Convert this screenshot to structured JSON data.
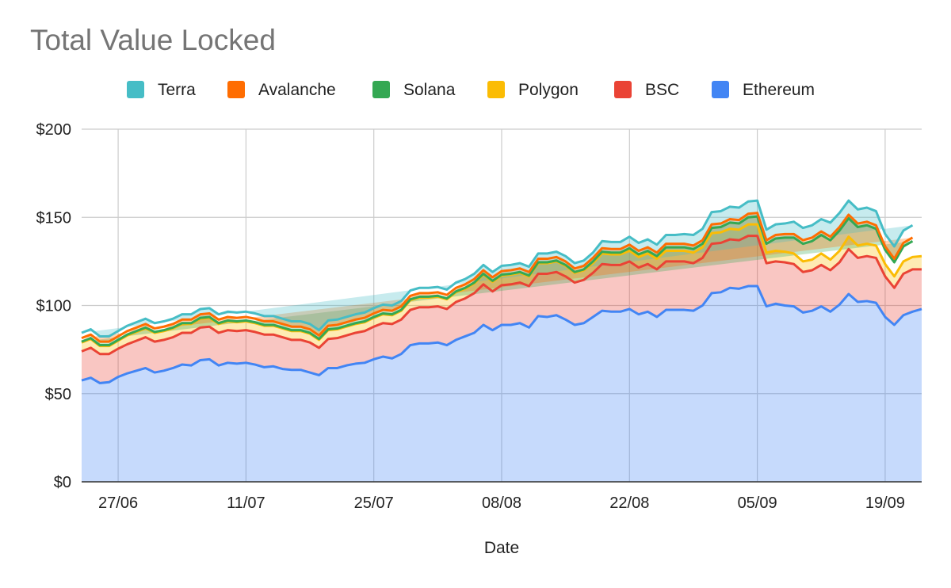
{
  "chart_data": {
    "type": "area",
    "stacked": true,
    "title": "Total Value Locked",
    "xlabel": "Date",
    "ylabel": "",
    "ylim": [
      0,
      200
    ],
    "y_ticks": [
      "$0",
      "$50",
      "$100",
      "$150",
      "$200"
    ],
    "y_tick_values": [
      0,
      50,
      100,
      150,
      200
    ],
    "x_tick_labels": [
      "27/06",
      "11/07",
      "25/07",
      "08/08",
      "22/08",
      "05/09",
      "19/09"
    ],
    "x_tick_indices": [
      4,
      18,
      32,
      46,
      60,
      74,
      88
    ],
    "grid": true,
    "legend_position": "top",
    "legend_order": [
      "Terra",
      "Avalanche",
      "Solana",
      "Polygon",
      "BSC",
      "Ethereum"
    ],
    "x_count": 93,
    "series": [
      {
        "name": "Ethereum",
        "color": "#4285f4",
        "values": [
          57.5,
          59,
          56,
          56.5,
          59.5,
          61.5,
          63,
          64.5,
          62,
          63,
          64.5,
          66.5,
          66,
          69,
          69.5,
          66,
          67.5,
          67,
          67.5,
          66.5,
          65,
          65.5,
          64,
          63.5,
          63.5,
          62,
          60.5,
          64.5,
          64.5,
          66,
          67,
          67.5,
          69.5,
          71,
          70,
          72.5,
          77.5,
          78.5,
          78.5,
          79,
          77.5,
          80.5,
          82.5,
          84.5,
          89,
          86,
          89,
          89,
          90,
          87.5,
          94,
          93.5,
          94.5,
          92,
          89,
          90,
          93.5,
          97,
          96.5,
          96.5,
          98,
          95,
          96.5,
          93.5,
          97.5,
          97.5,
          97.5,
          97,
          100,
          107,
          107.5,
          110,
          109.5,
          111,
          111,
          99.5,
          101,
          100,
          99.5,
          96,
          97,
          99.5,
          96.5,
          100.5,
          106.5,
          102,
          102.5,
          101.5,
          93.5,
          89,
          94.5,
          96.5,
          98
        ]
      },
      {
        "name": "BSC",
        "color": "#ea4335",
        "values": [
          16.5,
          17,
          16.5,
          16,
          16,
          16.5,
          17,
          17.5,
          17.5,
          17.5,
          17.5,
          18,
          18.5,
          18.5,
          18.5,
          18.5,
          18.5,
          18.5,
          18.5,
          18.5,
          18.5,
          18,
          18,
          17,
          17,
          17,
          15.5,
          16.5,
          17,
          17,
          17.5,
          18,
          18.5,
          19,
          19.5,
          19.5,
          20,
          20.5,
          20.5,
          20.5,
          20.5,
          21.5,
          21.5,
          22.5,
          23,
          22,
          22.5,
          23,
          23,
          23.5,
          24,
          24.5,
          24.5,
          24.5,
          24,
          24.5,
          25,
          26.5,
          26.5,
          26.5,
          27,
          26.5,
          27,
          27,
          27.5,
          27.5,
          27.5,
          27,
          27,
          28,
          28,
          27.5,
          27.5,
          28.5,
          28.5,
          24.5,
          24,
          24.5,
          24,
          23,
          23,
          23.5,
          23.5,
          24,
          25.5,
          25,
          25.5,
          25.5,
          23,
          21,
          23.5,
          24,
          22.5
        ]
      },
      {
        "name": "Polygon",
        "color": "#fbbc04",
        "values": [
          5,
          5,
          4.5,
          4.5,
          4.5,
          5,
          5,
          5,
          5,
          5,
          5,
          5,
          5,
          5,
          5,
          5,
          5,
          5,
          5,
          5,
          5,
          5,
          5,
          5,
          5,
          5,
          4.5,
          5,
          5,
          5,
          5,
          5,
          5,
          5,
          5,
          5,
          5.5,
          5.5,
          5.5,
          5.5,
          5.5,
          5.5,
          5.5,
          5.5,
          5.5,
          5.5,
          5.5,
          5.5,
          5.5,
          5.5,
          6,
          6,
          6,
          6,
          5.5,
          5.5,
          5.5,
          6,
          6,
          6,
          6,
          6,
          6,
          6,
          6,
          6,
          6,
          6,
          6,
          6,
          6,
          6,
          6,
          6.5,
          6.5,
          6,
          6,
          6,
          6,
          6,
          6,
          6.5,
          6,
          6.5,
          7,
          7,
          7,
          7,
          7,
          6.5,
          7,
          7,
          7.5
        ]
      },
      {
        "name": "Solana",
        "color": "#34a853",
        "values": [
          0.5,
          0.5,
          0.5,
          0.5,
          0.5,
          0.5,
          0.5,
          0.5,
          0.5,
          0.5,
          0.5,
          0.5,
          0.5,
          0.5,
          0.5,
          0.5,
          0.5,
          0.5,
          0.5,
          0.5,
          0.5,
          0.5,
          0.5,
          0.5,
          0.5,
          0.5,
          0.5,
          0.5,
          0.5,
          0.5,
          0.5,
          0.5,
          0.5,
          0.5,
          0.5,
          0.5,
          0.5,
          0.5,
          0.5,
          0.5,
          0.5,
          0.5,
          0.5,
          0.5,
          0.5,
          0.5,
          0.5,
          0.5,
          0.5,
          0.5,
          0.5,
          0.5,
          0.5,
          0.5,
          0.5,
          0.5,
          1,
          1,
          1,
          1,
          1.5,
          1.5,
          1.5,
          1.5,
          2,
          2,
          2,
          2,
          2,
          3,
          3,
          3.5,
          3.5,
          4,
          4.5,
          5,
          7,
          8,
          9,
          10,
          10.5,
          10.5,
          11,
          11.5,
          10.5,
          10.5,
          10.5,
          9.5,
          8,
          8,
          8.5,
          9
        ]
      },
      {
        "name": "Avalanche",
        "color": "#ff6d01",
        "values": [
          2,
          2,
          2,
          2,
          2,
          2,
          2,
          2,
          2,
          2,
          2,
          2,
          2,
          2,
          2,
          2,
          2,
          2,
          2,
          2,
          2,
          2,
          2,
          2,
          2,
          2,
          2,
          2,
          2,
          2,
          2,
          2,
          2,
          2,
          2,
          2,
          2,
          2,
          2,
          2,
          2,
          2,
          2,
          2,
          2,
          2,
          2,
          2,
          2,
          2,
          2,
          2,
          2,
          2,
          2,
          2,
          2,
          2,
          2,
          2,
          2,
          2,
          2,
          2,
          2,
          2,
          2,
          2,
          2,
          2,
          2,
          2,
          2,
          2,
          2,
          2,
          2,
          2,
          2,
          2,
          2,
          2,
          2,
          2,
          2,
          2,
          2,
          2,
          2,
          2,
          2,
          2,
          2
        ]
      },
      {
        "name": "Terra",
        "color": "#46bdc6",
        "values": [
          3,
          3,
          3,
          3,
          3,
          3,
          3,
          3,
          3,
          3,
          3,
          3,
          3,
          3,
          3,
          3,
          3,
          3,
          3,
          3,
          3,
          3,
          3,
          3,
          3,
          3,
          3,
          3,
          3,
          3,
          3,
          3,
          3,
          3,
          3,
          3,
          3,
          3,
          3,
          3,
          3,
          3,
          3,
          3,
          3,
          3,
          3,
          3,
          3,
          3,
          3,
          3,
          3,
          3,
          3,
          3,
          3,
          4,
          4,
          4,
          4.5,
          4.5,
          4.5,
          4.5,
          5,
          5,
          5.5,
          6,
          6.5,
          7,
          7,
          7,
          7,
          7,
          7,
          6,
          6,
          6,
          7,
          7,
          7,
          7,
          8,
          8,
          8,
          8,
          8,
          8,
          7,
          7,
          7,
          7,
          8
        ]
      }
    ]
  }
}
